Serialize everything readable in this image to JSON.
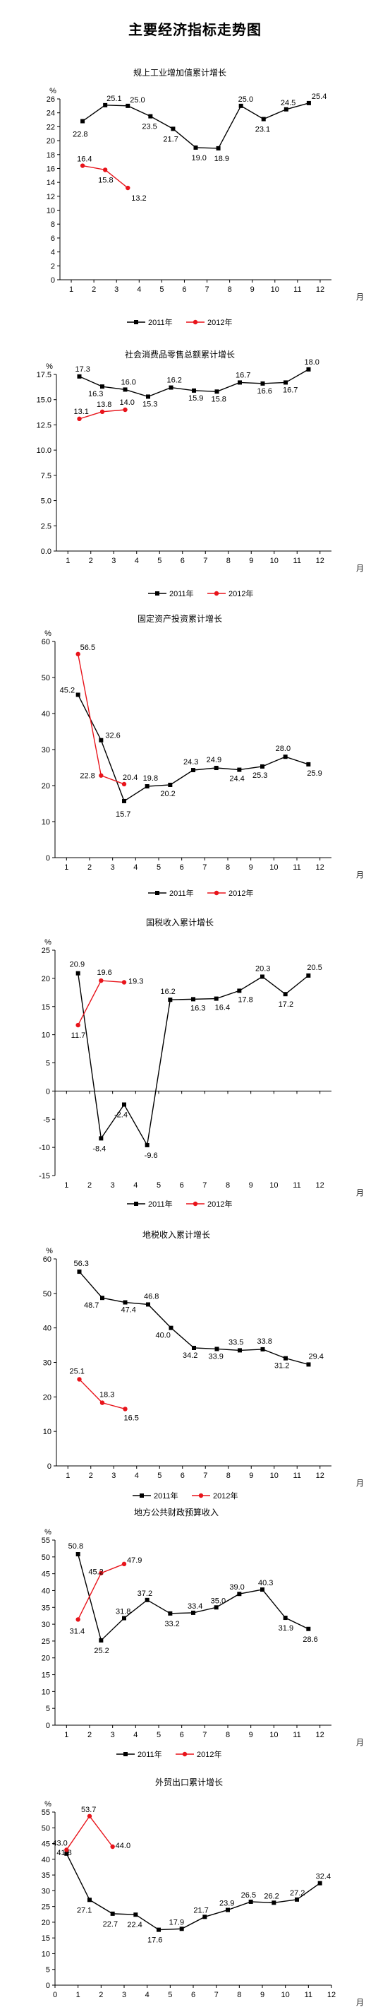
{
  "page": {
    "title": "主要经济指标走势图"
  },
  "chart_data": [
    {
      "type": "line",
      "title": "规上工业增加值累计增长",
      "ylabel": "%",
      "xlabel": "月",
      "ylim": [
        0,
        26
      ],
      "yticks": [
        0,
        2,
        4,
        6,
        8,
        10,
        12,
        14,
        16,
        18,
        20,
        22,
        24,
        26
      ],
      "xlim": [
        0.5,
        12.5
      ],
      "xticks": [
        1,
        2,
        3,
        4,
        5,
        6,
        7,
        8,
        9,
        10,
        11,
        12
      ],
      "grid": false,
      "legend": "bottom",
      "series": [
        {
          "name": "2011年",
          "color": "#000000",
          "marker": "square",
          "x": [
            1.5,
            2.5,
            3.5,
            4.5,
            5.5,
            6.5,
            7.5,
            8.5,
            9.5,
            10.5,
            11.5
          ],
          "y": [
            22.8,
            25.1,
            25.0,
            23.5,
            21.7,
            19.0,
            18.9,
            25.0,
            23.1,
            24.5,
            25.4
          ]
        },
        {
          "name": "2012年",
          "color": "#e8141b",
          "marker": "circle",
          "x": [
            1.5,
            2.5,
            3.5
          ],
          "y": [
            16.4,
            15.8,
            13.2
          ]
        }
      ]
    },
    {
      "type": "line",
      "title": "社会消费品零售总额累计增长",
      "ylabel": "%",
      "xlabel": "月",
      "ylim": [
        0,
        17.5
      ],
      "yticks": [
        0.0,
        2.5,
        5.0,
        7.5,
        10.0,
        12.5,
        15.0,
        17.5
      ],
      "xlim": [
        0.5,
        12.5
      ],
      "xticks": [
        1,
        2,
        3,
        4,
        5,
        6,
        7,
        8,
        9,
        10,
        11,
        12
      ],
      "grid": false,
      "legend": "bottom",
      "series": [
        {
          "name": "2011年",
          "color": "#000000",
          "marker": "square",
          "x": [
            1.5,
            2.5,
            3.5,
            4.5,
            5.5,
            6.5,
            7.5,
            8.5,
            9.5,
            10.5,
            11.5
          ],
          "y": [
            17.3,
            16.3,
            16.0,
            15.3,
            16.2,
            15.9,
            15.8,
            16.7,
            16.6,
            16.7,
            18.0
          ]
        },
        {
          "name": "2012年",
          "color": "#e8141b",
          "marker": "circle",
          "x": [
            1.5,
            2.5,
            3.5
          ],
          "y": [
            13.1,
            13.8,
            14.0
          ]
        }
      ]
    },
    {
      "type": "line",
      "title": "固定资产投资累计增长",
      "ylabel": "%",
      "xlabel": "月",
      "ylim": [
        0,
        60
      ],
      "yticks": [
        0,
        10,
        20,
        30,
        40,
        50,
        60
      ],
      "xlim": [
        0.5,
        12.5
      ],
      "xticks": [
        1,
        2,
        3,
        4,
        5,
        6,
        7,
        8,
        9,
        10,
        11,
        12
      ],
      "grid": false,
      "legend": "bottom",
      "series": [
        {
          "name": "2011年",
          "color": "#000000",
          "marker": "square",
          "x": [
            1.5,
            2.5,
            3.5,
            4.5,
            5.5,
            6.5,
            7.5,
            8.5,
            9.5,
            10.5,
            11.5
          ],
          "y": [
            45.2,
            32.6,
            15.7,
            19.8,
            20.2,
            24.3,
            24.9,
            24.4,
            25.3,
            28.0,
            25.9
          ]
        },
        {
          "name": "2012年",
          "color": "#e8141b",
          "marker": "circle",
          "x": [
            1.5,
            2.5,
            3.5
          ],
          "y": [
            56.5,
            22.8,
            20.4
          ]
        }
      ]
    },
    {
      "type": "line",
      "title": "国税收入累计增长",
      "ylabel": "%",
      "xlabel": "月",
      "ylim": [
        -15,
        25
      ],
      "yticks": [
        -15,
        -10,
        -5,
        0,
        5,
        10,
        15,
        20,
        25
      ],
      "xlim": [
        0.5,
        12.5
      ],
      "xticks": [
        1,
        2,
        3,
        4,
        5,
        6,
        7,
        8,
        9,
        10,
        11,
        12
      ],
      "grid": false,
      "legend": "bottom",
      "series": [
        {
          "name": "2011年",
          "color": "#000000",
          "marker": "square",
          "x": [
            1.5,
            2.5,
            3.5,
            4.5,
            5.5,
            6.5,
            7.5,
            8.5,
            9.5,
            10.5,
            11.5
          ],
          "y": [
            20.9,
            -8.4,
            -2.4,
            -9.6,
            16.2,
            16.3,
            16.4,
            17.8,
            20.3,
            17.2,
            20.5
          ]
        },
        {
          "name": "2012年",
          "color": "#e8141b",
          "marker": "circle",
          "x": [
            1.5,
            2.5,
            3.5
          ],
          "y": [
            11.7,
            19.6,
            19.3
          ]
        }
      ]
    },
    {
      "type": "line",
      "title": "地税收入累计增长",
      "ylabel": "%",
      "xlabel": "月",
      "ylim": [
        0,
        60
      ],
      "yticks": [
        0,
        10,
        20,
        30,
        40,
        50,
        60
      ],
      "xlim": [
        0.5,
        12.5
      ],
      "xticks": [
        1,
        2,
        3,
        4,
        5,
        6,
        7,
        8,
        9,
        10,
        11,
        12
      ],
      "grid": false,
      "legend": "bottom",
      "series": [
        {
          "name": "2011年",
          "color": "#000000",
          "marker": "square",
          "x": [
            1.5,
            2.5,
            3.5,
            4.5,
            5.5,
            6.5,
            7.5,
            8.5,
            9.5,
            10.5,
            11.5
          ],
          "y": [
            56.3,
            48.7,
            47.4,
            46.8,
            40.0,
            34.2,
            33.9,
            33.5,
            33.8,
            31.2,
            29.4
          ]
        },
        {
          "name": "2012年",
          "color": "#e8141b",
          "marker": "circle",
          "x": [
            1.5,
            2.5,
            3.5
          ],
          "y": [
            25.1,
            18.3,
            16.5
          ]
        }
      ]
    },
    {
      "type": "line",
      "title": "地方公共财政预算收入",
      "ylabel": "%",
      "xlabel": "月",
      "ylim": [
        0,
        55
      ],
      "yticks": [
        0,
        5,
        10,
        15,
        20,
        25,
        30,
        35,
        40,
        45,
        50,
        55
      ],
      "xlim": [
        0.5,
        12.5
      ],
      "xticks": [
        1,
        2,
        3,
        4,
        5,
        6,
        7,
        8,
        9,
        10,
        11,
        12
      ],
      "grid": false,
      "legend": "bottom",
      "series": [
        {
          "name": "2011年",
          "color": "#000000",
          "marker": "square",
          "x": [
            1.5,
            2.5,
            3.5,
            4.5,
            5.5,
            6.5,
            7.5,
            8.5,
            9.5,
            10.5,
            11.5
          ],
          "y": [
            50.8,
            25.2,
            31.8,
            37.2,
            33.2,
            33.4,
            35.0,
            39.0,
            40.3,
            31.9,
            28.6
          ]
        },
        {
          "name": "2012年",
          "color": "#e8141b",
          "marker": "circle",
          "x": [
            1.5,
            2.5,
            3.5
          ],
          "y": [
            31.4,
            45.2,
            47.9
          ]
        }
      ]
    },
    {
      "type": "line",
      "title": "外贸出口累计增长",
      "ylabel": "%",
      "xlabel": "月",
      "ylim": [
        0,
        55
      ],
      "yticks": [
        0,
        5,
        10,
        15,
        20,
        25,
        30,
        35,
        40,
        45,
        50,
        55
      ],
      "xlim": [
        0,
        12
      ],
      "xticks": [
        0,
        1,
        2,
        3,
        4,
        5,
        6,
        7,
        8,
        9,
        10,
        11,
        12
      ],
      "grid": false,
      "legend": "bottom",
      "series": [
        {
          "name": "2011年",
          "color": "#000000",
          "marker": "square",
          "x": [
            0.5,
            1.5,
            2.5,
            3.5,
            4.5,
            5.5,
            6.5,
            7.5,
            8.5,
            9.5,
            10.5,
            11.5
          ],
          "y": [
            41.8,
            27.1,
            22.7,
            22.4,
            17.6,
            17.9,
            21.7,
            23.9,
            26.5,
            26.2,
            27.2,
            32.4
          ]
        },
        {
          "name": "2012年",
          "color": "#e8141b",
          "marker": "circle",
          "x": [
            0.5,
            1.5,
            2.5
          ],
          "y": [
            43.0,
            53.7,
            44.0
          ]
        }
      ]
    }
  ]
}
